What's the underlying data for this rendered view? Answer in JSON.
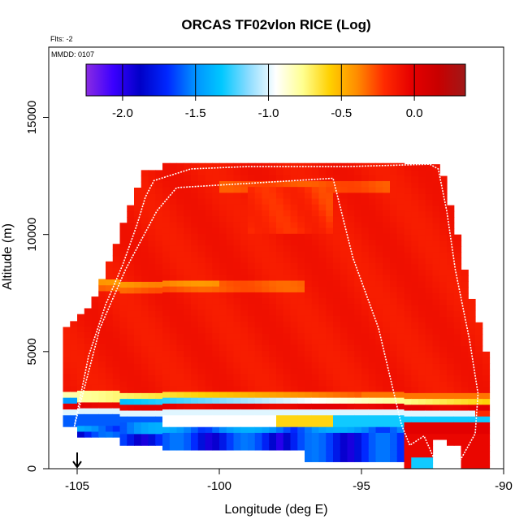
{
  "chart_data": {
    "type": "heatmap",
    "title": "ORCAS TF02vlon RICE (Log)",
    "subtitle_flts": "Flts: -2",
    "subtitle_mmdd": "MMDD: 0107",
    "xlabel": "Longitude (deg E)",
    "ylabel": "Altitude (m)",
    "xlim": [
      -106,
      -90
    ],
    "ylim": [
      0,
      18000
    ],
    "x_ticks": [
      -105,
      -100,
      -95,
      -90
    ],
    "x_tick_labels": [
      "-105",
      "-100",
      "-95",
      "-90"
    ],
    "y_ticks": [
      0,
      5000,
      10000,
      15000
    ],
    "y_tick_labels": [
      "0",
      "5000",
      "10000",
      "15000"
    ],
    "colorbar": {
      "range": [
        -2.25,
        0.35
      ],
      "ticks": [
        -2.0,
        -1.5,
        -1.0,
        -0.5,
        0.0
      ],
      "tick_labels": [
        "-2.0",
        "-1.5",
        "-1.0",
        "-0.5",
        "0.0"
      ],
      "colors": [
        "#8a2be2",
        "#3b00ff",
        "#0000c8",
        "#0028ff",
        "#0090ff",
        "#00c8ff",
        "#8cdcff",
        "#ffffff",
        "#ffff90",
        "#ffd000",
        "#ff8c00",
        "#ff2a00",
        "#e60000",
        "#c80000",
        "#a01818"
      ]
    },
    "arrow_marker_longitude": -105,
    "field_description_values": {
      "upper_region_value": -0.05,
      "low_band_1_altitude_m": 3000,
      "low_band_2_altitude_m": 2000
    },
    "flight_track_outline": [
      [
        -105.1,
        1800
      ],
      [
        -104.6,
        4800
      ],
      [
        -104.0,
        7000
      ],
      [
        -103.4,
        8700
      ],
      [
        -102.9,
        10400
      ],
      [
        -102.6,
        11600
      ],
      [
        -102.3,
        12300
      ],
      [
        -101.0,
        12800
      ],
      [
        -99.0,
        12900
      ],
      [
        -95.5,
        12900
      ],
      [
        -92.6,
        13000
      ],
      [
        -92.3,
        12800
      ],
      [
        -92.0,
        11000
      ],
      [
        -91.7,
        8500
      ],
      [
        -91.2,
        5500
      ],
      [
        -90.9,
        3200
      ],
      [
        -91.0,
        1500
      ],
      [
        -91.6,
        200
      ],
      [
        -92.4,
        300
      ],
      [
        -92.8,
        1400
      ],
      [
        -93.3,
        1000
      ],
      [
        -93.6,
        1900
      ],
      [
        -94.4,
        6000
      ],
      [
        -95.3,
        9000
      ],
      [
        -96.0,
        12400
      ],
      [
        -101.5,
        12000
      ],
      [
        -102.2,
        11000
      ],
      [
        -103.3,
        8500
      ],
      [
        -104.2,
        6000
      ],
      [
        -105.1,
        1800
      ]
    ]
  }
}
